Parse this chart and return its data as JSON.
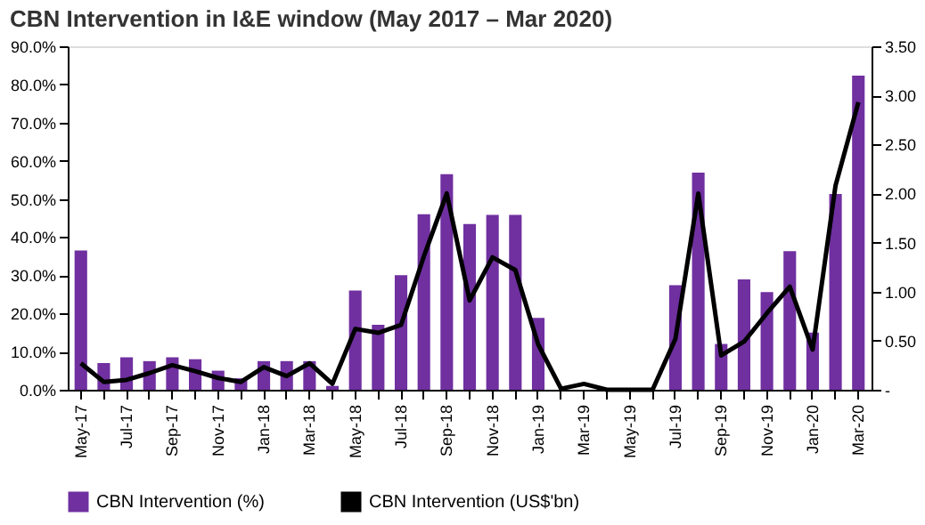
{
  "chart_data": {
    "type": "bar",
    "title": "CBN Intervention in I&E window (May 2017 – Mar 2020)",
    "categories": [
      "May-17",
      null,
      "Jul-17",
      null,
      "Sep-17",
      null,
      "Nov-17",
      null,
      "Jan-18",
      null,
      "Mar-18",
      null,
      "May-18",
      null,
      "Jul-18",
      null,
      "Sep-18",
      null,
      "Nov-18",
      null,
      "Jan-19",
      null,
      "Mar-19",
      null,
      "May-19",
      null,
      "Jul-19",
      null,
      "Sep-19",
      null,
      "Nov-19",
      null,
      "Jan-20",
      null,
      "Mar-20"
    ],
    "series": [
      {
        "name": "CBN Intervention (%)",
        "color": "#7030a0",
        "values": [
          36.5,
          7,
          8.5,
          7.5,
          8.5,
          8,
          5,
          3,
          7.5,
          7.5,
          7.5,
          1,
          26,
          17,
          30,
          46,
          56.5,
          43.4,
          45.8,
          45.8,
          18.8,
          null,
          null,
          0,
          0,
          0,
          27.4,
          56.9,
          12,
          28.9,
          25.6,
          36.3,
          15,
          51.3,
          82.3
        ]
      },
      {
        "name": "CBN Intervention (US$'bn)",
        "type": "line",
        "axis": "y2",
        "color": "#000000",
        "values": [
          0.27,
          0.08,
          0.1,
          0.17,
          0.25,
          0.19,
          0.12,
          0.08,
          0.23,
          0.14,
          0.27,
          0.06,
          0.62,
          0.58,
          0.66,
          1.36,
          2.0,
          0.91,
          1.35,
          1.22,
          0.46,
          0.01,
          0.06,
          0,
          0,
          0,
          0.52,
          2.0,
          0.35,
          0.49,
          0.78,
          1.05,
          0.41,
          2.08,
          2.93
        ]
      }
    ],
    "ylim": [
      0,
      90
    ],
    "yticks": [
      {
        "value": 0,
        "label": "0.0%"
      },
      {
        "value": 10,
        "label": "10.0%"
      },
      {
        "value": 20,
        "label": "20.0%"
      },
      {
        "value": 30,
        "label": "30.0%"
      },
      {
        "value": 40,
        "label": "40.0%"
      },
      {
        "value": 50,
        "label": "50.0%"
      },
      {
        "value": 60,
        "label": "60.0%"
      },
      {
        "value": 70,
        "label": "70.0%"
      },
      {
        "value": 80,
        "label": "80.0%"
      },
      {
        "value": 90,
        "label": "90.0%"
      }
    ],
    "y2lim": [
      0,
      3.5
    ],
    "y2ticks": [
      {
        "value": 0,
        "label": "-"
      },
      {
        "value": 0.5,
        "label": "0.50"
      },
      {
        "value": 1,
        "label": "1.00"
      },
      {
        "value": 1.5,
        "label": "1.50"
      },
      {
        "value": 2,
        "label": "2.00"
      },
      {
        "value": 2.5,
        "label": "2.50"
      },
      {
        "value": 3,
        "label": "3.00"
      },
      {
        "value": 3.5,
        "label": "3.50"
      }
    ],
    "grid": false,
    "legend": "bottom"
  }
}
